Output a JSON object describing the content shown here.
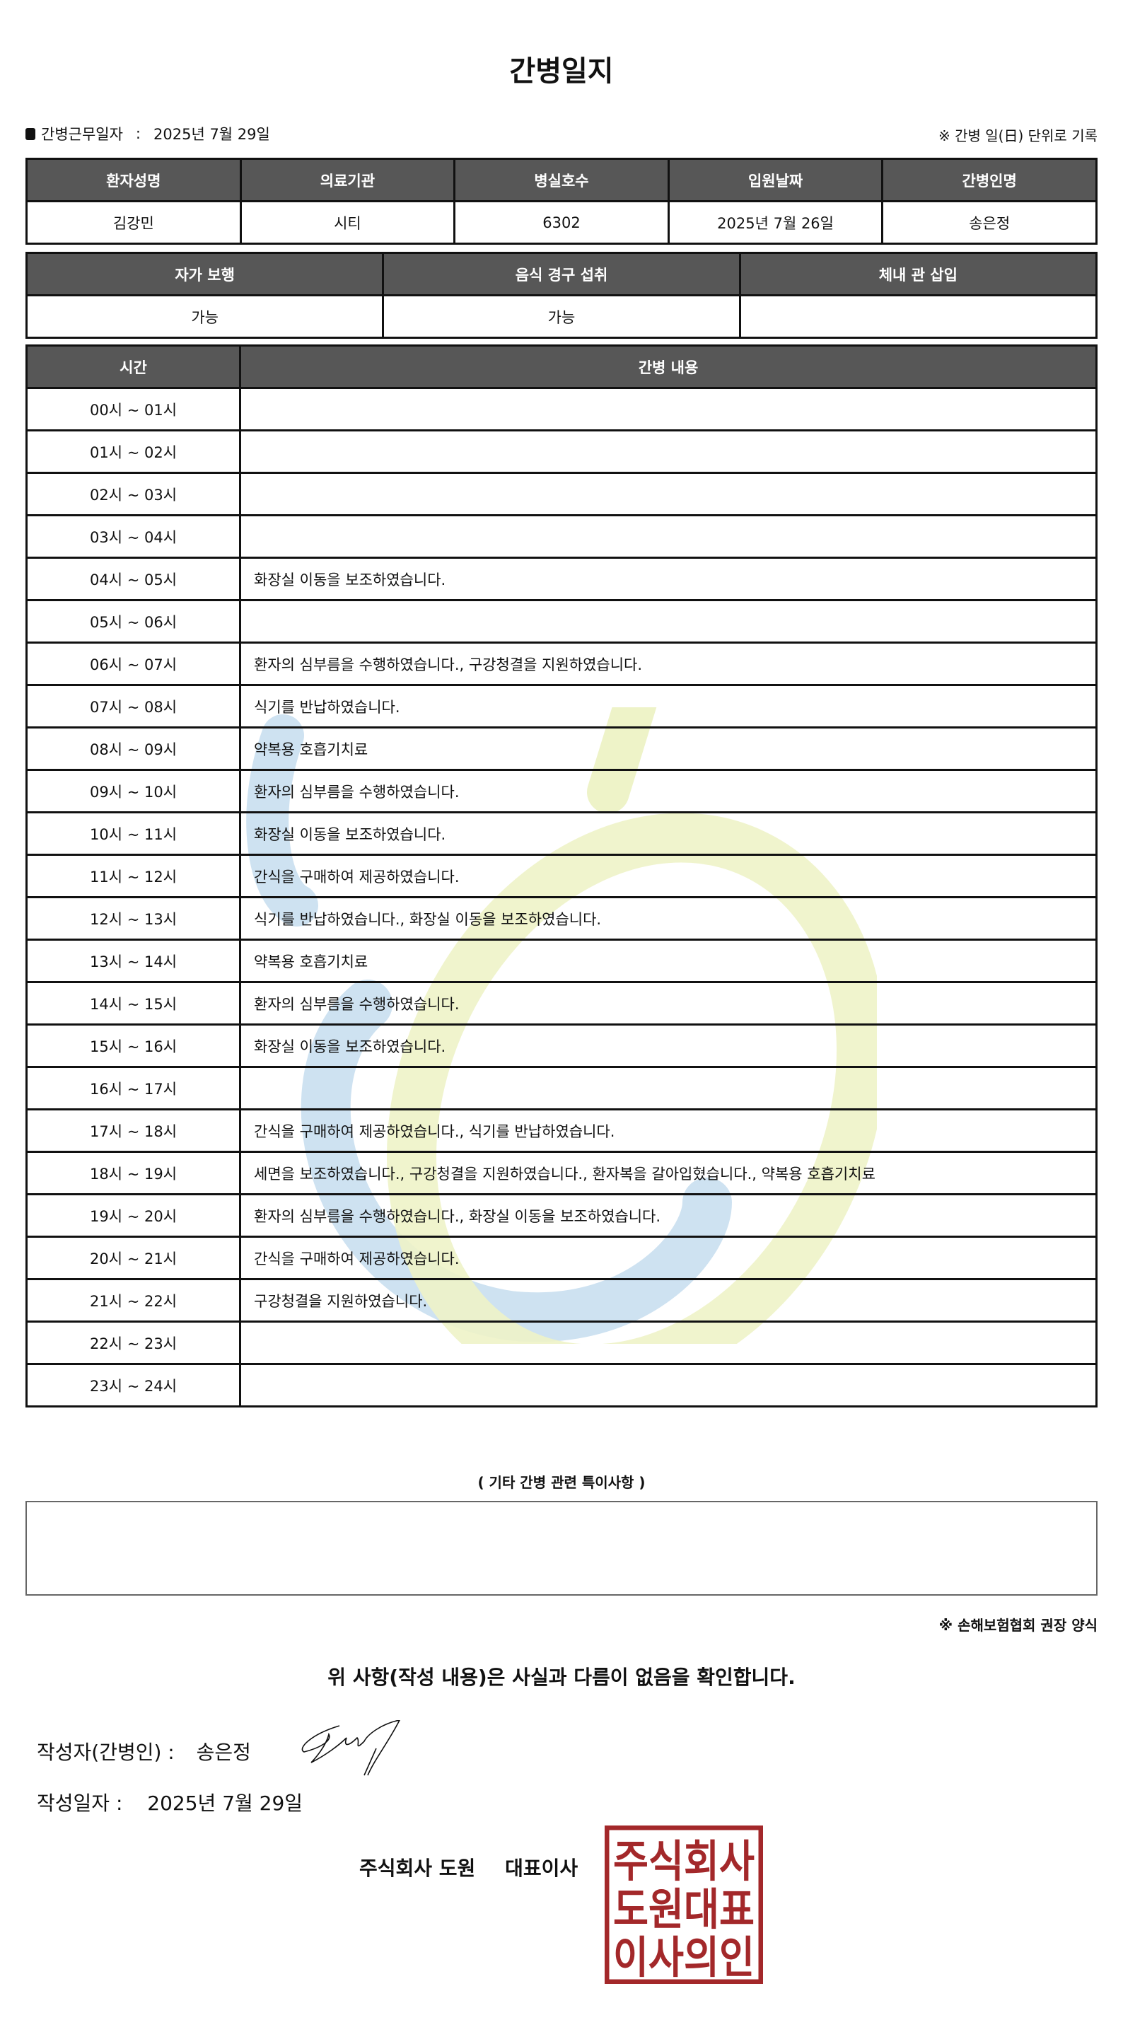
{
  "title": "간병일지",
  "duty_date_label": "간병근무일자",
  "duty_date_sep": ":",
  "duty_date": "2025년 7월 29일",
  "note_right": "※ 간병 일(日) 단위로 기록",
  "patient_table": {
    "headers": [
      "환자성명",
      "의료기관",
      "병실호수",
      "입원날짜",
      "간병인명"
    ],
    "values": [
      "김강민",
      "시티",
      "6302",
      "2025년 7월 26일",
      "송은정"
    ]
  },
  "status_table": {
    "headers": [
      "자가 보행",
      "음식 경구 섭취",
      "체내 관 삽입"
    ],
    "values": [
      "가능",
      "가능",
      ""
    ]
  },
  "log_table": {
    "headers": [
      "시간",
      "간병 내용"
    ],
    "rows": [
      {
        "time": "00시 ~ 01시",
        "content": ""
      },
      {
        "time": "01시 ~ 02시",
        "content": ""
      },
      {
        "time": "02시 ~ 03시",
        "content": ""
      },
      {
        "time": "03시 ~ 04시",
        "content": ""
      },
      {
        "time": "04시 ~ 05시",
        "content": "화장실 이동을 보조하였습니다."
      },
      {
        "time": "05시 ~ 06시",
        "content": ""
      },
      {
        "time": "06시 ~ 07시",
        "content": "환자의 심부름을 수행하였습니다., 구강청결을 지원하였습니다."
      },
      {
        "time": "07시 ~ 08시",
        "content": "식기를 반납하였습니다."
      },
      {
        "time": "08시 ~ 09시",
        "content": "약복용 호흡기치료"
      },
      {
        "time": "09시 ~ 10시",
        "content": "환자의 심부름을 수행하였습니다."
      },
      {
        "time": "10시 ~ 11시",
        "content": "화장실 이동을 보조하였습니다."
      },
      {
        "time": "11시 ~ 12시",
        "content": "간식을 구매하여 제공하였습니다."
      },
      {
        "time": "12시 ~ 13시",
        "content": "식기를 반납하였습니다., 화장실 이동을 보조하였습니다."
      },
      {
        "time": "13시 ~ 14시",
        "content": "약복용 호흡기치료"
      },
      {
        "time": "14시 ~ 15시",
        "content": "환자의 심부름을 수행하였습니다."
      },
      {
        "time": "15시 ~ 16시",
        "content": "화장실 이동을 보조하였습니다."
      },
      {
        "time": "16시 ~ 17시",
        "content": ""
      },
      {
        "time": "17시 ~ 18시",
        "content": "간식을 구매하여 제공하였습니다., 식기를 반납하였습니다."
      },
      {
        "time": "18시 ~ 19시",
        "content": "세면을 보조하였습니다., 구강청결을 지원하였습니다., 환자복을 갈아입혔습니다., 약복용 호흡기치료"
      },
      {
        "time": "19시 ~ 20시",
        "content": "환자의 심부름을 수행하였습니다., 화장실 이동을 보조하였습니다."
      },
      {
        "time": "20시 ~ 21시",
        "content": "간식을 구매하여 제공하였습니다."
      },
      {
        "time": "21시 ~ 22시",
        "content": "구강청결을 지원하였습니다."
      },
      {
        "time": "22시 ~ 23시",
        "content": ""
      },
      {
        "time": "23시 ~ 24시",
        "content": ""
      }
    ]
  },
  "etc_label": "( 기타 간병 관련 특이사항 )",
  "etc_content": "",
  "footnote": "※ 손해보험협회 권장 양식",
  "confirm_text": "위 사항(작성 내용)은 사실과 다름이 없음을 확인합니다.",
  "writer_label": "작성자(간병인) :",
  "writer_name": "송은정",
  "write_date_label": "작성일자 :",
  "write_date": "2025년 7월 29일",
  "company": "주식회사 도원",
  "ceo_label": "대표이사",
  "stamp_text": [
    "주식회사",
    "도원대표",
    "이사의인"
  ],
  "colors": {
    "header_bg": "#575757",
    "stamp": "#a3282a",
    "watermark_blue": "#c9dff0",
    "watermark_green": "#eef3c8"
  }
}
